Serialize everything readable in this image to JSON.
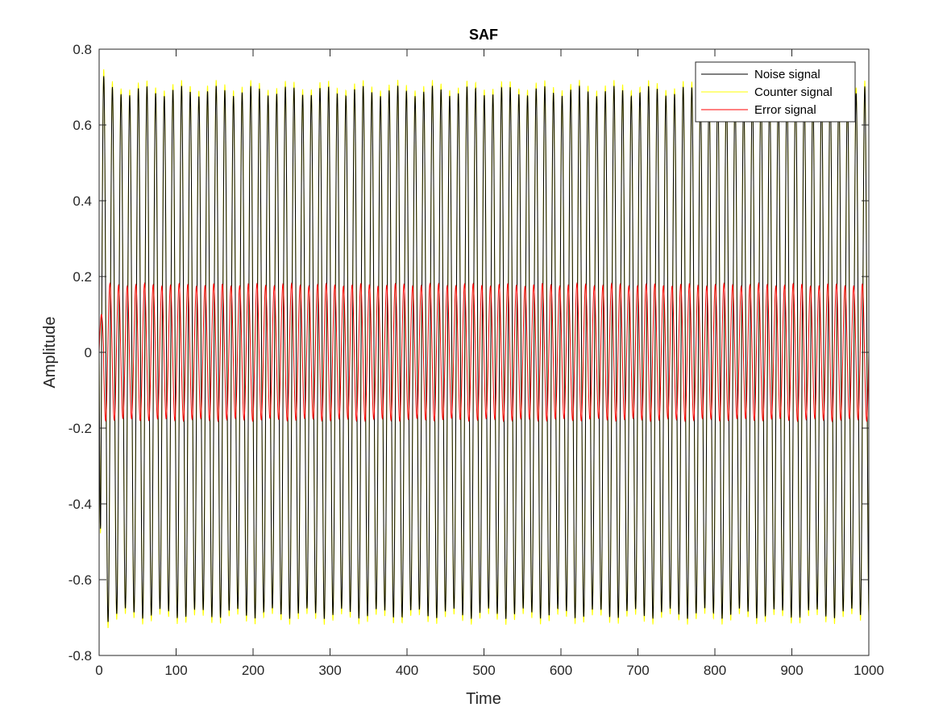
{
  "chart_data": {
    "type": "line",
    "title": "SAF",
    "xlabel": "Time",
    "ylabel": "Amplitude",
    "xlim": [
      0,
      1000
    ],
    "ylim": [
      -0.8,
      0.8
    ],
    "xticks": [
      "0",
      "100",
      "200",
      "300",
      "400",
      "500",
      "600",
      "700",
      "800",
      "900",
      "1000"
    ],
    "yticks": [
      "-0.8",
      "-0.6",
      "-0.4",
      "-0.2",
      "0",
      "0.2",
      "0.4",
      "0.6",
      "0.8"
    ],
    "grid": false,
    "legend_position": "top-right",
    "series": [
      {
        "name": "Noise signal",
        "color": "#000000",
        "amplitude": 0.69,
        "cycles": 89,
        "phase_peak_at": 6,
        "initial_peak": 0.74
      },
      {
        "name": "Counter signal",
        "color": "#ffff00",
        "amplitude": 0.705,
        "cycles": 89,
        "phase_peak_at": 6,
        "initial_peak": 0.76
      },
      {
        "name": "Error signal",
        "color": "#ff0000",
        "amplitude": 0.178,
        "cycles": 89,
        "phase_peak_at": 0,
        "initial_peak": 0.1
      }
    ]
  }
}
